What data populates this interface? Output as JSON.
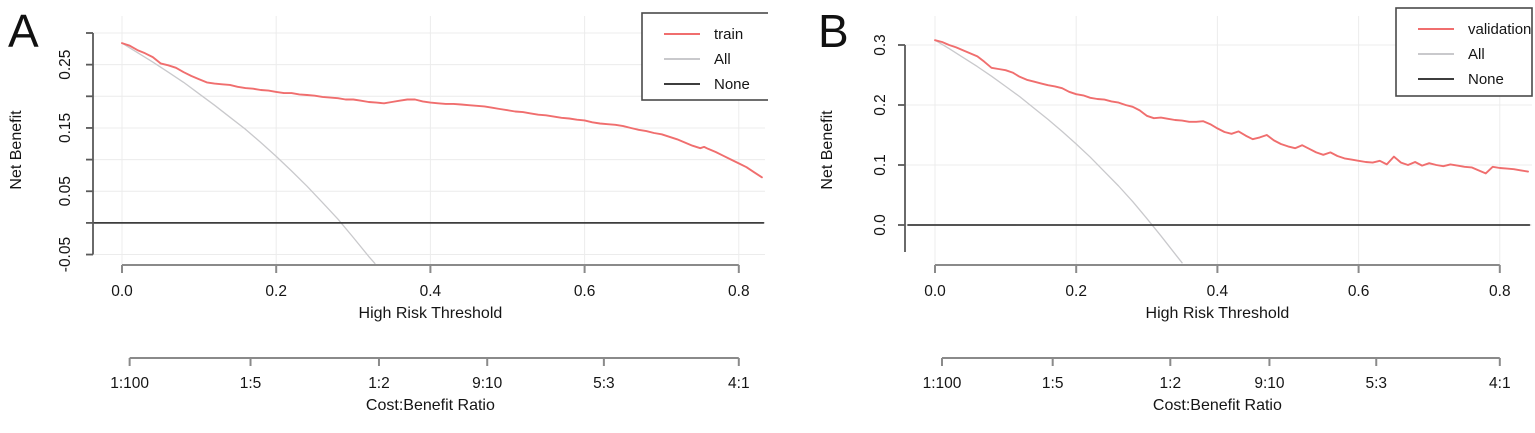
{
  "figure": {
    "background": "#ffffff",
    "colors": {
      "grid": "#ececec",
      "axis_x": "#8a8a8a",
      "axis_y": "#5a5a5a",
      "tick_text": "#151515",
      "legend_border": "#4a4a4a",
      "train": "#f06e6e",
      "validation": "#f06e6e",
      "all": "#c9c9cc",
      "none": "#3d3d3d"
    }
  },
  "chart_data": [
    {
      "type": "line",
      "panel_label": "A",
      "xlabel": "High Risk Threshold",
      "ylabel": "Net Benefit",
      "x2label": "Cost:Benefit Ratio",
      "xlim": [
        0,
        0.83
      ],
      "ylim": [
        -0.05,
        0.3
      ],
      "grid": true,
      "x_ticks": [
        0,
        0.2,
        0.4,
        0.6,
        0.8
      ],
      "x_tick_labels": [
        "0.0",
        "0.2",
        "0.4",
        "0.6",
        "0.8"
      ],
      "y_ticks": [
        0.3,
        0.25,
        0.2,
        0.15,
        0.1,
        0.05,
        0.0,
        -0.05
      ],
      "y_tick_labels": [
        "",
        "0.25",
        "",
        "0.15",
        "",
        "0.05",
        "",
        "-0.05"
      ],
      "x2_ticks": [
        0.0099,
        0.1667,
        0.3333,
        0.4737,
        0.625,
        0.8
      ],
      "x2_tick_labels": [
        "1:100",
        "1:5",
        "1:2",
        "9:10",
        "5:3",
        "4:1"
      ],
      "legend": {
        "position": "top-right",
        "entries": [
          {
            "label": "train",
            "color": "#f06e6e"
          },
          {
            "label": "All",
            "color": "#c9c9cc"
          },
          {
            "label": "None",
            "color": "#3d3d3d"
          }
        ]
      },
      "series": [
        {
          "name": "all",
          "color": "#c9c9cc",
          "width": 1.3,
          "points": [
            [
              0,
              0.284
            ],
            [
              0.02,
              0.269
            ],
            [
              0.04,
              0.254
            ],
            [
              0.06,
              0.238
            ],
            [
              0.08,
              0.222
            ],
            [
              0.1,
              0.204
            ],
            [
              0.12,
              0.186
            ],
            [
              0.14,
              0.167
            ],
            [
              0.16,
              0.148
            ],
            [
              0.18,
              0.127
            ],
            [
              0.2,
              0.105
            ],
            [
              0.22,
              0.082
            ],
            [
              0.24,
              0.058
            ],
            [
              0.26,
              0.032
            ],
            [
              0.28,
              0.006
            ],
            [
              0.3,
              -0.023
            ],
            [
              0.32,
              -0.053
            ],
            [
              0.328,
              -0.064
            ]
          ]
        },
        {
          "name": "none",
          "color": "#3d3d3d",
          "width": 1.7,
          "full_width": true,
          "points": [
            [
              0,
              0
            ],
            [
              0.832,
              0
            ]
          ]
        },
        {
          "name": "train",
          "color": "#f06e6e",
          "width": 1.9,
          "points": [
            [
              0,
              0.284
            ],
            [
              0.01,
              0.28
            ],
            [
              0.02,
              0.273
            ],
            [
              0.03,
              0.268
            ],
            [
              0.04,
              0.262
            ],
            [
              0.05,
              0.252
            ],
            [
              0.06,
              0.249
            ],
            [
              0.07,
              0.245
            ],
            [
              0.08,
              0.238
            ],
            [
              0.09,
              0.232
            ],
            [
              0.1,
              0.227
            ],
            [
              0.11,
              0.222
            ],
            [
              0.12,
              0.22
            ],
            [
              0.13,
              0.219
            ],
            [
              0.14,
              0.218
            ],
            [
              0.15,
              0.215
            ],
            [
              0.16,
              0.213
            ],
            [
              0.17,
              0.212
            ],
            [
              0.18,
              0.21
            ],
            [
              0.19,
              0.209
            ],
            [
              0.2,
              0.207
            ],
            [
              0.21,
              0.205
            ],
            [
              0.22,
              0.205
            ],
            [
              0.23,
              0.203
            ],
            [
              0.24,
              0.202
            ],
            [
              0.25,
              0.201
            ],
            [
              0.26,
              0.199
            ],
            [
              0.27,
              0.198
            ],
            [
              0.28,
              0.197
            ],
            [
              0.29,
              0.195
            ],
            [
              0.3,
              0.195
            ],
            [
              0.31,
              0.193
            ],
            [
              0.32,
              0.191
            ],
            [
              0.33,
              0.19
            ],
            [
              0.34,
              0.189
            ],
            [
              0.35,
              0.191
            ],
            [
              0.36,
              0.193
            ],
            [
              0.37,
              0.195
            ],
            [
              0.38,
              0.195
            ],
            [
              0.39,
              0.192
            ],
            [
              0.4,
              0.19
            ],
            [
              0.41,
              0.189
            ],
            [
              0.42,
              0.188
            ],
            [
              0.43,
              0.188
            ],
            [
              0.44,
              0.187
            ],
            [
              0.45,
              0.186
            ],
            [
              0.46,
              0.185
            ],
            [
              0.47,
              0.184
            ],
            [
              0.48,
              0.182
            ],
            [
              0.49,
              0.18
            ],
            [
              0.5,
              0.178
            ],
            [
              0.51,
              0.176
            ],
            [
              0.52,
              0.175
            ],
            [
              0.53,
              0.173
            ],
            [
              0.54,
              0.171
            ],
            [
              0.55,
              0.17
            ],
            [
              0.56,
              0.168
            ],
            [
              0.57,
              0.166
            ],
            [
              0.58,
              0.165
            ],
            [
              0.59,
              0.163
            ],
            [
              0.6,
              0.162
            ],
            [
              0.61,
              0.159
            ],
            [
              0.62,
              0.157
            ],
            [
              0.63,
              0.156
            ],
            [
              0.64,
              0.155
            ],
            [
              0.65,
              0.153
            ],
            [
              0.66,
              0.15
            ],
            [
              0.67,
              0.147
            ],
            [
              0.68,
              0.145
            ],
            [
              0.69,
              0.142
            ],
            [
              0.7,
              0.14
            ],
            [
              0.71,
              0.136
            ],
            [
              0.72,
              0.132
            ],
            [
              0.73,
              0.127
            ],
            [
              0.74,
              0.122
            ],
            [
              0.75,
              0.118
            ],
            [
              0.755,
              0.12
            ],
            [
              0.76,
              0.117
            ],
            [
              0.77,
              0.112
            ],
            [
              0.78,
              0.106
            ],
            [
              0.79,
              0.1
            ],
            [
              0.8,
              0.094
            ],
            [
              0.81,
              0.088
            ],
            [
              0.82,
              0.08
            ],
            [
              0.83,
              0.072
            ]
          ]
        }
      ]
    },
    {
      "type": "line",
      "panel_label": "B",
      "xlabel": "High Risk Threshold",
      "ylabel": "Net Benefit",
      "x2label": "Cost:Benefit Ratio",
      "xlim": [
        0,
        0.84
      ],
      "ylim": [
        -0.05,
        0.31
      ],
      "grid": true,
      "x_ticks": [
        0,
        0.2,
        0.4,
        0.6,
        0.8
      ],
      "x_tick_labels": [
        "0.0",
        "0.2",
        "0.4",
        "0.6",
        "0.8"
      ],
      "y_ticks": [
        0.3,
        0.2,
        0.1,
        0.0
      ],
      "y_tick_labels": [
        "0.3",
        "0.2",
        "0.1",
        "0.0"
      ],
      "x2_ticks": [
        0.0099,
        0.1667,
        0.3333,
        0.4737,
        0.625,
        0.8
      ],
      "x2_tick_labels": [
        "1:100",
        "1:5",
        "1:2",
        "9:10",
        "5:3",
        "4:1"
      ],
      "legend": {
        "position": "top-right",
        "entries": [
          {
            "label": "validation",
            "color": "#f06e6e"
          },
          {
            "label": "All",
            "color": "#c9c9cc"
          },
          {
            "label": "None",
            "color": "#3d3d3d"
          }
        ]
      },
      "series": [
        {
          "name": "all",
          "color": "#c9c9cc",
          "width": 1.3,
          "points": [
            [
              0,
              0.308
            ],
            [
              0.02,
              0.294
            ],
            [
              0.04,
              0.279
            ],
            [
              0.06,
              0.264
            ],
            [
              0.08,
              0.248
            ],
            [
              0.1,
              0.231
            ],
            [
              0.12,
              0.214
            ],
            [
              0.14,
              0.195
            ],
            [
              0.16,
              0.176
            ],
            [
              0.18,
              0.156
            ],
            [
              0.2,
              0.135
            ],
            [
              0.22,
              0.113
            ],
            [
              0.24,
              0.089
            ],
            [
              0.26,
              0.065
            ],
            [
              0.28,
              0.039
            ],
            [
              0.3,
              0.011
            ],
            [
              0.32,
              -0.018
            ],
            [
              0.34,
              -0.048
            ],
            [
              0.35,
              -0.063
            ]
          ]
        },
        {
          "name": "none",
          "color": "#3d3d3d",
          "width": 1.7,
          "full_width": true,
          "points": [
            [
              0,
              0
            ],
            [
              0.842,
              0
            ]
          ]
        },
        {
          "name": "validation",
          "color": "#f06e6e",
          "width": 1.9,
          "points": [
            [
              0,
              0.308
            ],
            [
              0.01,
              0.305
            ],
            [
              0.02,
              0.3
            ],
            [
              0.03,
              0.296
            ],
            [
              0.04,
              0.291
            ],
            [
              0.05,
              0.286
            ],
            [
              0.06,
              0.281
            ],
            [
              0.07,
              0.272
            ],
            [
              0.08,
              0.262
            ],
            [
              0.09,
              0.26
            ],
            [
              0.1,
              0.258
            ],
            [
              0.11,
              0.254
            ],
            [
              0.12,
              0.247
            ],
            [
              0.13,
              0.242
            ],
            [
              0.14,
              0.239
            ],
            [
              0.15,
              0.236
            ],
            [
              0.16,
              0.233
            ],
            [
              0.17,
              0.231
            ],
            [
              0.18,
              0.228
            ],
            [
              0.19,
              0.222
            ],
            [
              0.2,
              0.218
            ],
            [
              0.21,
              0.216
            ],
            [
              0.22,
              0.212
            ],
            [
              0.23,
              0.21
            ],
            [
              0.24,
              0.209
            ],
            [
              0.25,
              0.206
            ],
            [
              0.26,
              0.204
            ],
            [
              0.27,
              0.2
            ],
            [
              0.28,
              0.197
            ],
            [
              0.29,
              0.191
            ],
            [
              0.3,
              0.182
            ],
            [
              0.31,
              0.178
            ],
            [
              0.32,
              0.179
            ],
            [
              0.33,
              0.177
            ],
            [
              0.34,
              0.175
            ],
            [
              0.35,
              0.174
            ],
            [
              0.36,
              0.172
            ],
            [
              0.37,
              0.172
            ],
            [
              0.38,
              0.173
            ],
            [
              0.39,
              0.168
            ],
            [
              0.4,
              0.161
            ],
            [
              0.41,
              0.155
            ],
            [
              0.42,
              0.152
            ],
            [
              0.43,
              0.156
            ],
            [
              0.44,
              0.149
            ],
            [
              0.45,
              0.143
            ],
            [
              0.46,
              0.146
            ],
            [
              0.47,
              0.15
            ],
            [
              0.48,
              0.141
            ],
            [
              0.49,
              0.135
            ],
            [
              0.5,
              0.131
            ],
            [
              0.51,
              0.128
            ],
            [
              0.52,
              0.133
            ],
            [
              0.53,
              0.127
            ],
            [
              0.54,
              0.121
            ],
            [
              0.55,
              0.117
            ],
            [
              0.56,
              0.121
            ],
            [
              0.57,
              0.115
            ],
            [
              0.58,
              0.111
            ],
            [
              0.59,
              0.109
            ],
            [
              0.6,
              0.107
            ],
            [
              0.61,
              0.105
            ],
            [
              0.62,
              0.104
            ],
            [
              0.63,
              0.107
            ],
            [
              0.64,
              0.101
            ],
            [
              0.65,
              0.114
            ],
            [
              0.66,
              0.104
            ],
            [
              0.67,
              0.1
            ],
            [
              0.68,
              0.105
            ],
            [
              0.69,
              0.099
            ],
            [
              0.7,
              0.103
            ],
            [
              0.71,
              0.1
            ],
            [
              0.72,
              0.098
            ],
            [
              0.73,
              0.101
            ],
            [
              0.74,
              0.099
            ],
            [
              0.75,
              0.097
            ],
            [
              0.76,
              0.096
            ],
            [
              0.77,
              0.091
            ],
            [
              0.78,
              0.086
            ],
            [
              0.79,
              0.097
            ],
            [
              0.8,
              0.095
            ],
            [
              0.81,
              0.094
            ],
            [
              0.82,
              0.093
            ],
            [
              0.83,
              0.091
            ],
            [
              0.84,
              0.089
            ]
          ]
        }
      ]
    }
  ]
}
